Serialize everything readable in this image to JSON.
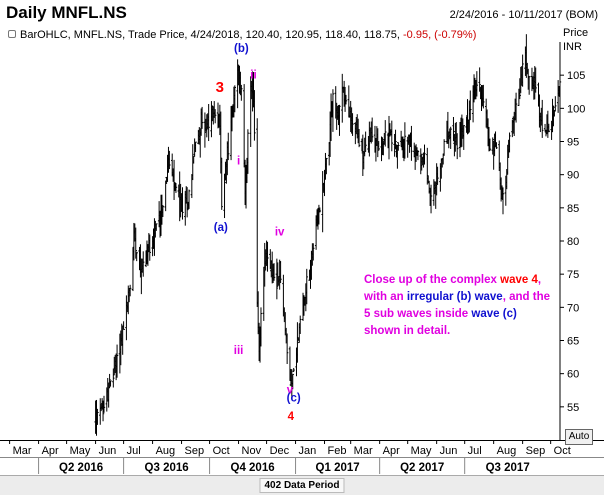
{
  "header": {
    "title": "Daily MNFL.NS",
    "date_range": "2/24/2016 - 10/11/2017 (BOM)",
    "ohlc_prefix": "BarOHLC, MNFL.NS, Trade Price, 4/24/2018, 120.40, 120.95, 118.40, 118.75, ",
    "ohlc_change": "-0.95, (-0.79%)"
  },
  "axis": {
    "price_label": "Price",
    "currency_label": "INR",
    "auto_button": "Auto"
  },
  "status_bar": {
    "text": "402 Data Period"
  },
  "annotation_colors": {
    "red": "#ff0000",
    "blue": "#1010d0",
    "magenta": "#e000e0"
  },
  "annotations": [
    {
      "text": "3",
      "color": "red",
      "date": "2016-10-12",
      "price": 102.5,
      "size": "large"
    },
    {
      "text": "(b)",
      "color": "blue",
      "date": "2016-11-04",
      "price": 108.5
    },
    {
      "text": "ii",
      "color": "magenta",
      "date": "2016-11-17",
      "price": 104.5
    },
    {
      "text": "i",
      "color": "magenta",
      "date": "2016-11-01",
      "price": 91.5
    },
    {
      "text": "(a)",
      "color": "blue",
      "date": "2016-10-13",
      "price": 81.5
    },
    {
      "text": "iv",
      "color": "magenta",
      "date": "2016-12-15",
      "price": 80.8
    },
    {
      "text": "iii",
      "color": "magenta",
      "date": "2016-11-01",
      "price": 63.0
    },
    {
      "text": "v",
      "color": "magenta",
      "date": "2016-12-26",
      "price": 57.0
    },
    {
      "text": "(c)",
      "color": "blue",
      "date": "2016-12-30",
      "price": 55.8
    },
    {
      "text": "4",
      "color": "red",
      "date": "2016-12-27",
      "price": 53.0
    }
  ],
  "note": {
    "line1": "Close up of the complex",
    "wave4": "wave 4",
    "mid1": ", with an ",
    "irregular": "irregular (b)",
    "wave_b": "wave",
    "mid2": ", and the 5 sub waves",
    "inside": "inside ",
    "wave_c": "wave (c)",
    "tail": " shown in detail."
  },
  "chart_data": {
    "type": "ohlc",
    "series_name": "MNFL.NS",
    "x_range": [
      "2016-02-24",
      "2017-10-11"
    ],
    "y_range": [
      50,
      110
    ],
    "y_ticks": [
      55,
      60,
      65,
      70,
      75,
      80,
      85,
      90,
      95,
      100,
      105
    ],
    "month_labels": [
      {
        "label": "Mar",
        "date": "2016-03-01"
      },
      {
        "label": "Apr",
        "date": "2016-04-01"
      },
      {
        "label": "May",
        "date": "2016-05-01"
      },
      {
        "label": "Jun",
        "date": "2016-06-01"
      },
      {
        "label": "Jul",
        "date": "2016-07-01"
      },
      {
        "label": "Aug",
        "date": "2016-08-01"
      },
      {
        "label": "Sep",
        "date": "2016-09-01"
      },
      {
        "label": "Oct",
        "date": "2016-10-01"
      },
      {
        "label": "Nov",
        "date": "2016-11-01"
      },
      {
        "label": "Dec",
        "date": "2016-12-01"
      },
      {
        "label": "Jan",
        "date": "2017-01-01"
      },
      {
        "label": "Feb",
        "date": "2017-02-01"
      },
      {
        "label": "Mar",
        "date": "2017-03-01"
      },
      {
        "label": "Apr",
        "date": "2017-04-01"
      },
      {
        "label": "May",
        "date": "2017-05-01"
      },
      {
        "label": "Jun",
        "date": "2017-06-01"
      },
      {
        "label": "Jul",
        "date": "2017-07-01"
      },
      {
        "label": "Aug",
        "date": "2017-08-01"
      },
      {
        "label": "Sep",
        "date": "2017-09-01"
      },
      {
        "label": "Oct",
        "date": "2017-10-01"
      }
    ],
    "quarter_labels": [
      {
        "label": "Q2 2016",
        "start": "2016-04-01",
        "end": "2016-07-01"
      },
      {
        "label": "Q3 2016",
        "start": "2016-07-01",
        "end": "2016-10-01"
      },
      {
        "label": "Q4 2016",
        "start": "2016-10-01",
        "end": "2017-01-01"
      },
      {
        "label": "Q1 2017",
        "start": "2017-01-01",
        "end": "2017-04-01"
      },
      {
        "label": "Q2 2017",
        "start": "2017-04-01",
        "end": "2017-07-01"
      },
      {
        "label": "Q3 2017",
        "start": "2017-07-01",
        "end": "2017-10-01"
      }
    ],
    "price_path": [
      [
        "2016-06-01",
        53
      ],
      [
        "2016-06-10",
        55
      ],
      [
        "2016-06-20",
        60
      ],
      [
        "2016-06-30",
        66
      ],
      [
        "2016-07-08",
        73
      ],
      [
        "2016-07-12",
        81
      ],
      [
        "2016-07-20",
        76
      ],
      [
        "2016-07-28",
        79
      ],
      [
        "2016-08-05",
        82
      ],
      [
        "2016-08-12",
        86
      ],
      [
        "2016-08-18",
        92
      ],
      [
        "2016-08-24",
        88
      ],
      [
        "2016-09-01",
        85
      ],
      [
        "2016-09-08",
        86
      ],
      [
        "2016-09-14",
        93
      ],
      [
        "2016-09-22",
        98
      ],
      [
        "2016-09-30",
        97
      ],
      [
        "2016-10-06",
        100
      ],
      [
        "2016-10-12",
        98
      ],
      [
        "2016-10-14",
        86
      ],
      [
        "2016-10-20",
        93
      ],
      [
        "2016-10-26",
        100
      ],
      [
        "2016-10-31",
        106
      ],
      [
        "2016-11-04",
        102
      ],
      [
        "2016-11-08",
        88
      ],
      [
        "2016-11-12",
        98
      ],
      [
        "2016-11-16",
        105
      ],
      [
        "2016-11-18",
        96
      ],
      [
        "2016-11-21",
        70
      ],
      [
        "2016-11-23",
        63
      ],
      [
        "2016-11-26",
        72
      ],
      [
        "2016-11-30",
        78
      ],
      [
        "2016-12-06",
        76
      ],
      [
        "2016-12-12",
        72
      ],
      [
        "2016-12-15",
        76
      ],
      [
        "2016-12-19",
        70
      ],
      [
        "2016-12-23",
        63
      ],
      [
        "2016-12-27",
        59
      ],
      [
        "2016-12-30",
        60
      ],
      [
        "2017-01-04",
        66
      ],
      [
        "2017-01-10",
        72
      ],
      [
        "2017-01-16",
        75
      ],
      [
        "2017-01-20",
        80
      ],
      [
        "2017-01-25",
        83
      ],
      [
        "2017-02-01",
        90
      ],
      [
        "2017-02-06",
        96
      ],
      [
        "2017-02-10",
        102
      ],
      [
        "2017-02-15",
        98
      ],
      [
        "2017-02-20",
        103
      ],
      [
        "2017-02-27",
        99
      ],
      [
        "2017-03-06",
        97
      ],
      [
        "2017-03-14",
        93
      ],
      [
        "2017-03-22",
        96
      ],
      [
        "2017-04-01",
        94
      ],
      [
        "2017-04-10",
        96
      ],
      [
        "2017-04-20",
        94
      ],
      [
        "2017-04-30",
        95
      ],
      [
        "2017-05-10",
        93
      ],
      [
        "2017-05-20",
        92
      ],
      [
        "2017-05-26",
        86
      ],
      [
        "2017-06-02",
        89
      ],
      [
        "2017-06-12",
        96
      ],
      [
        "2017-06-24",
        95
      ],
      [
        "2017-07-04",
        98
      ],
      [
        "2017-07-14",
        104
      ],
      [
        "2017-07-22",
        101
      ],
      [
        "2017-07-28",
        94
      ],
      [
        "2017-08-04",
        95
      ],
      [
        "2017-08-10",
        86
      ],
      [
        "2017-08-14",
        90
      ],
      [
        "2017-08-20",
        97
      ],
      [
        "2017-08-27",
        101
      ],
      [
        "2017-09-03",
        108
      ],
      [
        "2017-09-07",
        106
      ],
      [
        "2017-09-14",
        104
      ],
      [
        "2017-09-20",
        98
      ],
      [
        "2017-09-25",
        96
      ],
      [
        "2017-10-02",
        97
      ],
      [
        "2017-10-06",
        101
      ],
      [
        "2017-10-11",
        104
      ]
    ]
  }
}
